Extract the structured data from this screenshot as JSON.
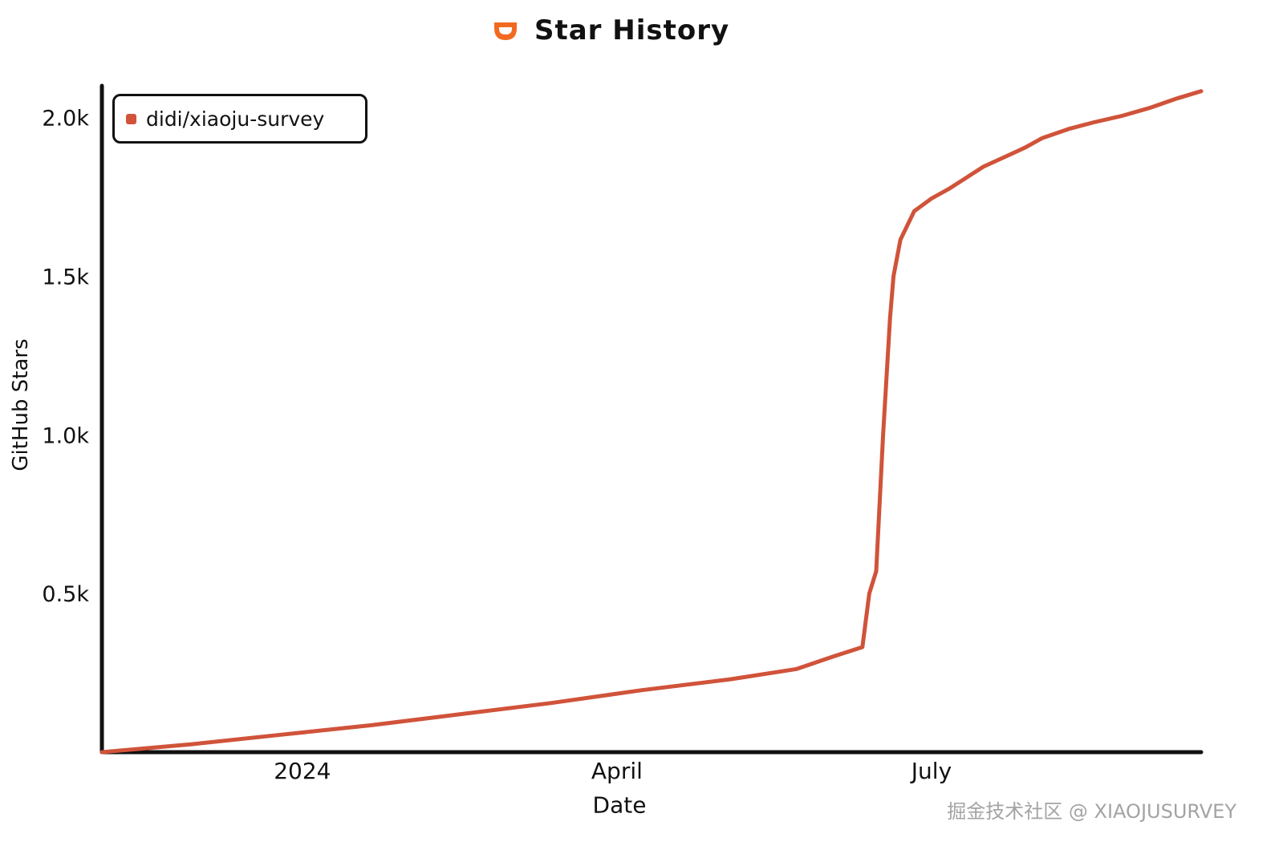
{
  "header": {
    "title": "Star History",
    "logo_icon": "didi-logo-icon"
  },
  "watermark": "掘金技术社区 @ XIAOJUSURVEY",
  "chart_data": {
    "type": "line",
    "title": "Star History",
    "xlabel": "Date",
    "ylabel": "GitHub Stars",
    "x_tick_labels": [
      "2024",
      "April",
      "July"
    ],
    "x_tick_dates": [
      "2024-01-01",
      "2024-04-01",
      "2024-07-01"
    ],
    "y_tick_labels": [
      "0.5k",
      "1.0k",
      "1.5k",
      "2.0k"
    ],
    "y_tick_values": [
      500,
      1000,
      1500,
      2000
    ],
    "xlim": [
      "2023-11-04",
      "2024-09-17"
    ],
    "ylim": [
      0,
      2100
    ],
    "grid": false,
    "legend_position": "top-left",
    "colors": {
      "line": "#d0533a",
      "axis": "#111111",
      "logo": "#f26a21"
    },
    "series": [
      {
        "name": "didi/xiaoju-survey",
        "points": [
          [
            "2023-11-04",
            0
          ],
          [
            "2023-11-30",
            25
          ],
          [
            "2023-12-26",
            55
          ],
          [
            "2024-01-21",
            85
          ],
          [
            "2024-02-16",
            120
          ],
          [
            "2024-03-13",
            155
          ],
          [
            "2024-04-08",
            195
          ],
          [
            "2024-05-04",
            230
          ],
          [
            "2024-05-23",
            262
          ],
          [
            "2024-06-03",
            303
          ],
          [
            "2024-06-11",
            331
          ],
          [
            "2024-06-13",
            500
          ],
          [
            "2024-06-15",
            570
          ],
          [
            "2024-06-17",
            1000
          ],
          [
            "2024-06-19",
            1370
          ],
          [
            "2024-06-20",
            1500
          ],
          [
            "2024-06-22",
            1615
          ],
          [
            "2024-06-26",
            1705
          ],
          [
            "2024-07-01",
            1745
          ],
          [
            "2024-07-06",
            1775
          ],
          [
            "2024-07-11",
            1810
          ],
          [
            "2024-07-16",
            1845
          ],
          [
            "2024-07-23",
            1880
          ],
          [
            "2024-07-28",
            1905
          ],
          [
            "2024-08-02",
            1935
          ],
          [
            "2024-08-10",
            1965
          ],
          [
            "2024-08-17",
            1985
          ],
          [
            "2024-08-25",
            2005
          ],
          [
            "2024-09-02",
            2030
          ],
          [
            "2024-09-10",
            2060
          ],
          [
            "2024-09-17",
            2083
          ]
        ]
      }
    ]
  }
}
